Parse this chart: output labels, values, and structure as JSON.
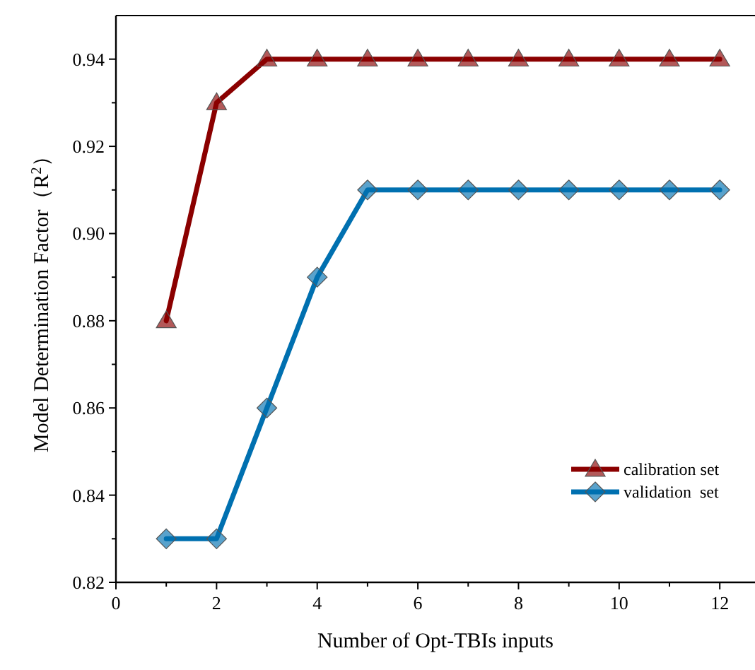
{
  "chart_data": {
    "type": "line",
    "xlabel": "Number of Opt-TBIs inputs",
    "ylabel": "Model Determination Factor（R$^{2}$）",
    "x": [
      1,
      2,
      3,
      4,
      5,
      6,
      7,
      8,
      9,
      10,
      11,
      12
    ],
    "xlim": [
      0,
      12.7
    ],
    "xticks": [
      0,
      {
        "value": 1,
        "label": null
      },
      2,
      {
        "value": 3,
        "label": null
      },
      4,
      {
        "value": 5,
        "label": null
      },
      6,
      {
        "value": 7,
        "label": null
      },
      8,
      {
        "value": 9,
        "label": null
      },
      10,
      {
        "value": 11,
        "label": null
      },
      12
    ],
    "ylim": [
      0.82,
      0.95
    ],
    "yticks": [
      {
        "value": 0.82,
        "label": "0.82"
      },
      {
        "value": 0.83,
        "label": null
      },
      {
        "value": 0.84,
        "label": "0.84"
      },
      {
        "value": 0.85,
        "label": null
      },
      {
        "value": 0.86,
        "label": "0.86"
      },
      {
        "value": 0.87,
        "label": null
      },
      {
        "value": 0.88,
        "label": "0.88"
      },
      {
        "value": 0.89,
        "label": null
      },
      {
        "value": 0.9,
        "label": "0.90"
      },
      {
        "value": 0.91,
        "label": null
      },
      {
        "value": 0.92,
        "label": "0.92"
      },
      {
        "value": 0.93,
        "label": null
      },
      {
        "value": 0.94,
        "label": "0.94"
      }
    ],
    "legend": "bottom right",
    "grid": false,
    "series": [
      {
        "name": "calibration set",
        "color": "#8b0000",
        "marker": "triangle",
        "values": [
          0.88,
          0.93,
          0.94,
          0.94,
          0.94,
          0.94,
          0.94,
          0.94,
          0.94,
          0.94,
          0.94,
          0.94
        ]
      },
      {
        "name": "validation  set",
        "color": "#0070b0",
        "marker": "diamond",
        "values": [
          0.83,
          0.83,
          0.86,
          0.89,
          0.91,
          0.91,
          0.91,
          0.91,
          0.91,
          0.91,
          0.91,
          0.91
        ]
      }
    ]
  }
}
